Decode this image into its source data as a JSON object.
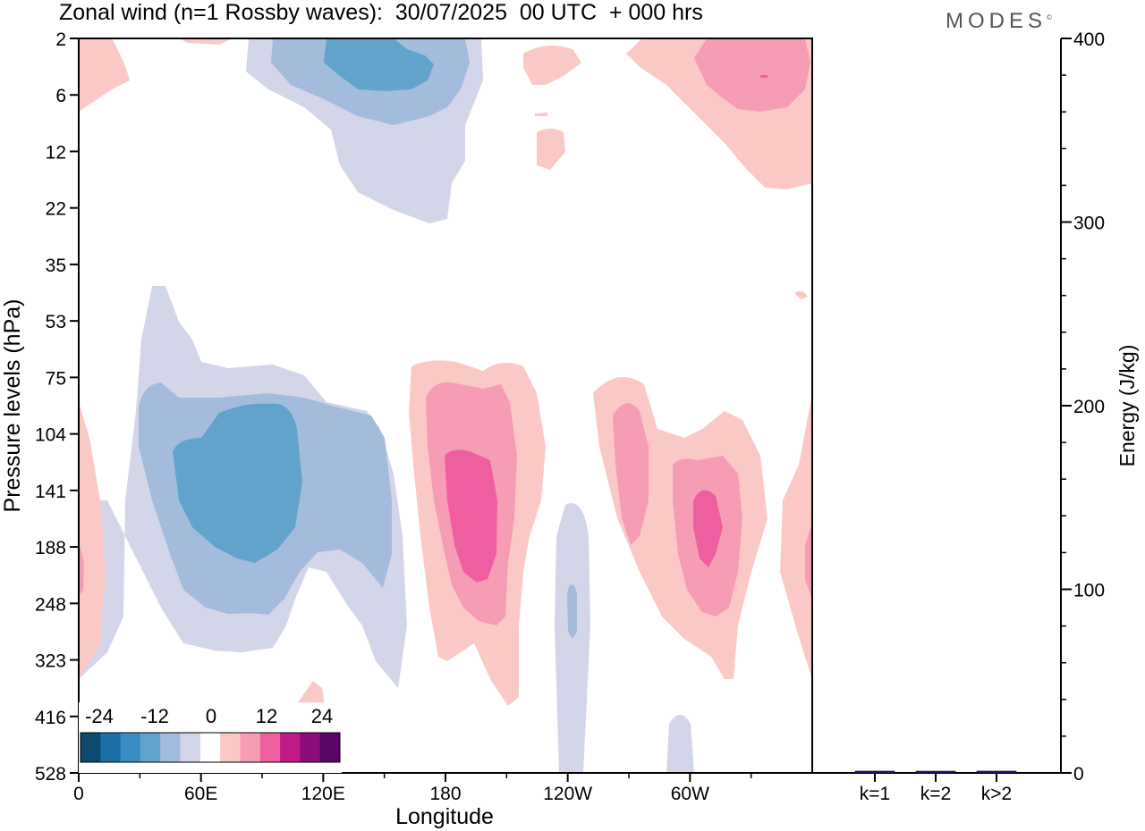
{
  "header": {
    "title": "Zonal wind (n=1 Rossby waves):  30/07/2025  00 UTC  + 000 hrs",
    "logo": "MODES",
    "logo_mark": "©"
  },
  "chart_data": [
    {
      "type": "contour",
      "title": "Zonal wind (n=1 Rossby waves):  30/07/2025  00 UTC  + 000 hrs",
      "xlabel": "Longitude",
      "ylabel": "Pressure levels (hPa)",
      "x_ticks": [
        "0",
        "60E",
        "120E",
        "180",
        "120W",
        "60W"
      ],
      "x_tick_values": [
        0,
        60,
        120,
        180,
        240,
        300
      ],
      "xlim": [
        0,
        360
      ],
      "y_ticks": [
        "2",
        "6",
        "12",
        "22",
        "35",
        "53",
        "75",
        "104",
        "141",
        "188",
        "248",
        "323",
        "416",
        "528"
      ],
      "colorbar": {
        "labels": [
          "-24",
          "-12",
          "0",
          "12",
          "24"
        ],
        "levels": [
          -30,
          -24,
          -18,
          -12,
          -6,
          0,
          6,
          12,
          18,
          24,
          30
        ],
        "colors": [
          "#0d4a6e",
          "#1c6fa6",
          "#3a8cc4",
          "#62a3cc",
          "#a3bcdb",
          "#d3d6e8",
          "#ffffff",
          "#fac9c6",
          "#f79cb5",
          "#ef5f9f",
          "#c01a86",
          "#8c0c7a",
          "#5a0668"
        ]
      },
      "features": [
        {
          "name": "negative core upper troposphere",
          "lon_range": [
            25,
            155
          ],
          "level_range": [
            35,
            416
          ],
          "min_value": -18
        },
        {
          "name": "negative core stratosphere",
          "lon_range": [
            85,
            200
          ],
          "level_range": [
            2,
            22
          ],
          "min_value": -18
        },
        {
          "name": "positive core 180-200",
          "lon_range": [
            165,
            230
          ],
          "level_range": [
            75,
            416
          ],
          "max_value": 18
        },
        {
          "name": "positive core 60W",
          "lon_range": [
            255,
            345
          ],
          "level_range": [
            75,
            323
          ],
          "max_value": 18
        },
        {
          "name": "positive stratosphere 30W",
          "lon_range": [
            270,
            360
          ],
          "level_range": [
            2,
            22
          ],
          "max_value": 12
        }
      ]
    },
    {
      "type": "bar",
      "ylabel": "Energy (J/kg)",
      "ylim": [
        0,
        400
      ],
      "y_ticks": [
        "0",
        "100",
        "200",
        "300",
        "400"
      ],
      "categories": [
        "k=1",
        "k=2",
        "k>2"
      ],
      "values": [
        1,
        0.5,
        1
      ],
      "bar_color": "#1a1a8c"
    }
  ]
}
